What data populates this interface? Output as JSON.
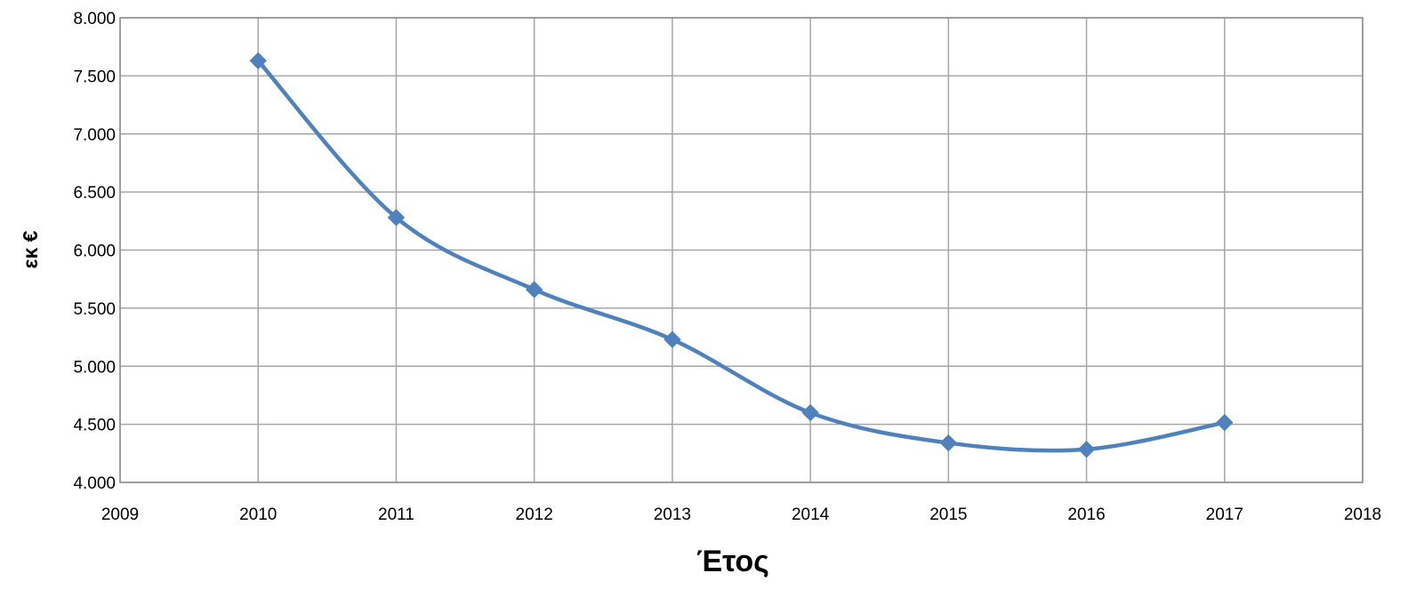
{
  "chart_data": {
    "type": "scatter",
    "title": "",
    "xlabel": "Έτος",
    "ylabel": "εκ €",
    "xlim": [
      2009,
      2018
    ],
    "ylim": [
      4000,
      8000
    ],
    "grid": true,
    "smooth": true,
    "x_ticks": [
      {
        "value": 2009,
        "label": "2009"
      },
      {
        "value": 2010,
        "label": "2010"
      },
      {
        "value": 2011,
        "label": "2011"
      },
      {
        "value": 2012,
        "label": "2012"
      },
      {
        "value": 2013,
        "label": "2013"
      },
      {
        "value": 2014,
        "label": "2014"
      },
      {
        "value": 2015,
        "label": "2015"
      },
      {
        "value": 2016,
        "label": "2016"
      },
      {
        "value": 2017,
        "label": "2017"
      },
      {
        "value": 2018,
        "label": "2018"
      }
    ],
    "y_ticks": [
      {
        "value": 4000,
        "label": "4.000"
      },
      {
        "value": 4500,
        "label": "4.500"
      },
      {
        "value": 5000,
        "label": "5.000"
      },
      {
        "value": 5500,
        "label": "5.500"
      },
      {
        "value": 6000,
        "label": "6.000"
      },
      {
        "value": 6500,
        "label": "6.500"
      },
      {
        "value": 7000,
        "label": "7.000"
      },
      {
        "value": 7500,
        "label": "7.500"
      },
      {
        "value": 8000,
        "label": "8.000"
      }
    ],
    "series": [
      {
        "color": "#4f81bd",
        "marker": "diamond",
        "x": [
          2010,
          2011,
          2012,
          2013,
          2014,
          2015,
          2016,
          2017
        ],
        "y": [
          7630,
          6280,
          5660,
          5230,
          4600,
          4340,
          4285,
          4515
        ]
      }
    ],
    "colors": {
      "gridline": "#a6a6a6",
      "plot_border": "#8c8c8c",
      "axis_text": "#000000"
    }
  }
}
